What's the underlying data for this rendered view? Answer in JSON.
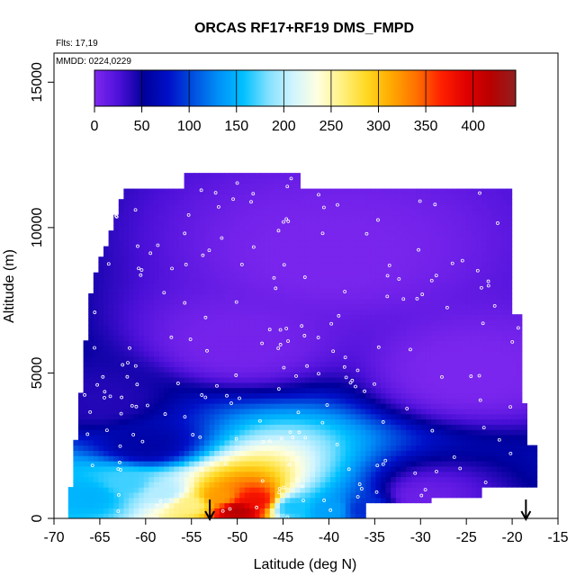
{
  "chart_data": {
    "type": "heatmap",
    "title": "ORCAS RF17+RF19 DMS_FMPD",
    "annotations": {
      "flights": "Flts: 17,19",
      "dates": "MMDD: 0224,0229"
    },
    "xlabel": "Latitude (deg N)",
    "ylabel": "Altitude (m)",
    "xlim": [
      -70,
      -15
    ],
    "ylim": [
      0,
      16000
    ],
    "x_ticks": [
      -70,
      -65,
      -60,
      -55,
      -50,
      -45,
      -40,
      -35,
      -30,
      -25,
      -20,
      -15
    ],
    "y_ticks": [
      0,
      5000,
      10000,
      15000
    ],
    "colorbar": {
      "range": [
        0,
        445
      ],
      "ticks": [
        0,
        50,
        100,
        150,
        200,
        250,
        300,
        350,
        400
      ],
      "colors": [
        "#7f28f0",
        "#4b10d8",
        "#00009a",
        "#0010c8",
        "#0050e0",
        "#0090f8",
        "#00c0ff",
        "#80e0ff",
        "#d0f4ff",
        "#ffffe0",
        "#fff080",
        "#ffd820",
        "#ffa800",
        "#ff7000",
        "#ff2000",
        "#e00000",
        "#b80000",
        "#902020"
      ]
    },
    "arrows": [
      -53,
      -18.5
    ],
    "grid": false,
    "series": [
      {
        "name": "DMS_FMPD",
        "points": [
          {
            "lat": -50,
            "alt": 300,
            "value": 420
          },
          {
            "lat": -48,
            "alt": 600,
            "value": 380
          },
          {
            "lat": -52,
            "alt": 700,
            "value": 320
          },
          {
            "lat": -55,
            "alt": 500,
            "value": 260
          },
          {
            "lat": -58,
            "alt": 900,
            "value": 200
          },
          {
            "lat": -62,
            "alt": 1200,
            "value": 170
          },
          {
            "lat": -66,
            "alt": 800,
            "value": 150
          },
          {
            "lat": -44,
            "alt": 400,
            "value": 160
          },
          {
            "lat": -40,
            "alt": 300,
            "value": 140
          },
          {
            "lat": -36,
            "alt": 300,
            "value": 90
          },
          {
            "lat": -30,
            "alt": 700,
            "value": 10
          },
          {
            "lat": -60,
            "alt": 2500,
            "value": 60
          },
          {
            "lat": -65,
            "alt": 4000,
            "value": 40
          },
          {
            "lat": -50,
            "alt": 6000,
            "value": 5
          },
          {
            "lat": -40,
            "alt": 9000,
            "value": 3
          },
          {
            "lat": -25,
            "alt": 5000,
            "value": 2
          }
        ]
      }
    ]
  }
}
